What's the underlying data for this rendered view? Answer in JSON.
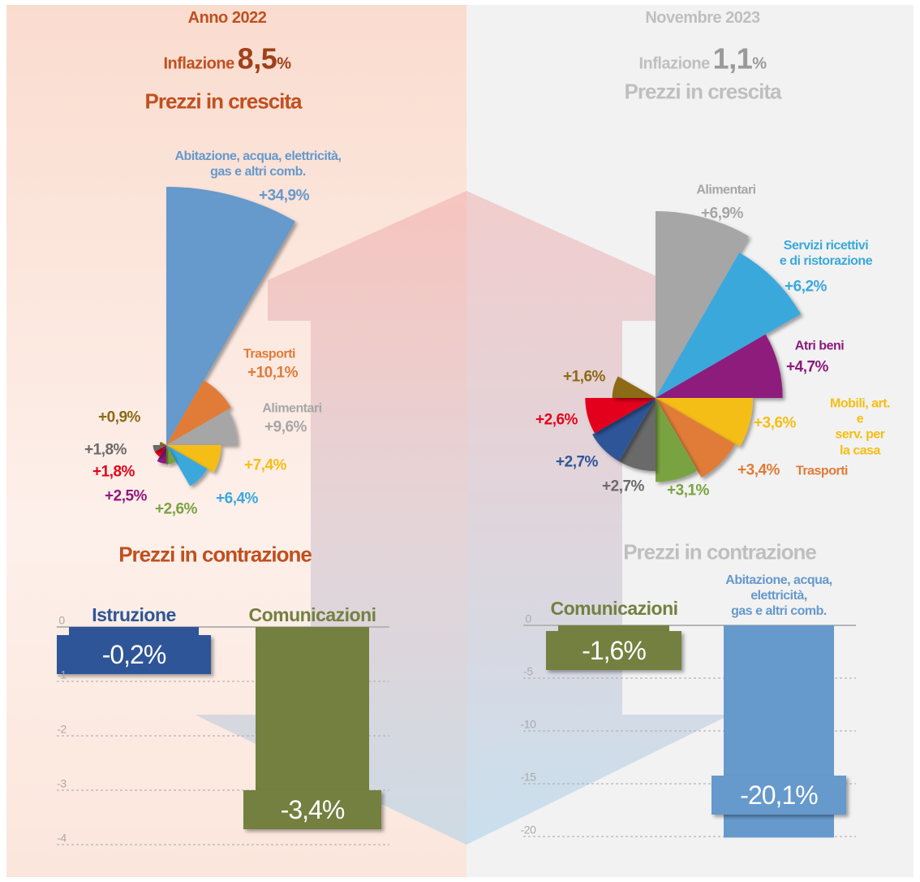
{
  "panels": [
    {
      "period": "Anno 2022",
      "inflation_label": "Inflazione",
      "inflation_value": "8,5",
      "inflation_unit": "%"
    },
    {
      "period": "Novembre 2023",
      "inflation_label": "Inflazione",
      "inflation_value": "1,1",
      "inflation_unit": "%"
    }
  ],
  "chart_data": [
    {
      "type": "rose",
      "title": "Prezzi in crescita",
      "categories": [
        "Abitazione, acqua, elettricità,\ngas e altri comb.",
        "Trasporti",
        "Alimentari",
        null,
        null,
        null,
        null,
        null,
        null,
        null
      ],
      "values": [
        34.9,
        10.1,
        9.6,
        7.4,
        6.4,
        2.6,
        2.5,
        1.8,
        1.8,
        0.9
      ],
      "value_labels": [
        "+34,9%",
        "+10,1%",
        "+9,6%",
        "+7,4%",
        "+6,4%",
        "+2,6%",
        "+2,5%",
        "+1,8%",
        "+1,8%",
        "+0,9%"
      ],
      "colors": [
        "#6699cc",
        "#e07b39",
        "#a6a6a6",
        "#f5be13",
        "#3aa8dc",
        "#79a33f",
        "#8e1a7c",
        "#e3051b",
        "#6b6b6b",
        "#8c6a17"
      ]
    },
    {
      "type": "bar",
      "title": "Prezzi in contrazione",
      "categories": [
        "Istruzione",
        "Comunicazioni"
      ],
      "values": [
        -0.2,
        -3.4
      ],
      "value_labels": [
        "-0,2%",
        "-3,4%"
      ],
      "colors": [
        "#2f5597",
        "#738040"
      ],
      "ylim": [
        -4,
        0
      ],
      "yticks": [
        0,
        -1,
        -2,
        -3,
        -4
      ],
      "grid": true
    },
    {
      "type": "rose",
      "title": "Prezzi in crescita",
      "categories": [
        "Alimentari",
        "Servizi ricettivi\ne di ristorazione",
        "Atri beni",
        "Mobili, art. e\nserv. per la casa",
        "Trasporti",
        null,
        null,
        null,
        null,
        null
      ],
      "values": [
        6.9,
        6.2,
        4.7,
        3.6,
        3.4,
        3.1,
        2.7,
        2.7,
        2.6,
        1.6
      ],
      "value_labels": [
        "+6,9%",
        "+6,2%",
        "+4,7%",
        "+3,6%",
        "+3,4%",
        "+3,1%",
        "+2,7%",
        "+2,7%",
        "+2,6%",
        "+1,6%"
      ],
      "colors": [
        "#a6a6a6",
        "#3aa8dc",
        "#8e1a7c",
        "#f5be13",
        "#e07b39",
        "#79a33f",
        "#6b6b6b",
        "#2f5597",
        "#e3051b",
        "#8c6a17"
      ]
    },
    {
      "type": "bar",
      "title": "Prezzi in contrazione",
      "categories": [
        "Comunicazioni",
        "Abitazione, acqua, elettricità,\ngas e altri comb."
      ],
      "values": [
        -1.6,
        -20.1
      ],
      "value_labels": [
        "-1,6%",
        "-20,1%"
      ],
      "colors": [
        "#738040",
        "#6699cc"
      ],
      "ylim": [
        -20,
        0
      ],
      "yticks": [
        0,
        -5,
        -10,
        -15,
        -20
      ],
      "grid": true
    }
  ]
}
